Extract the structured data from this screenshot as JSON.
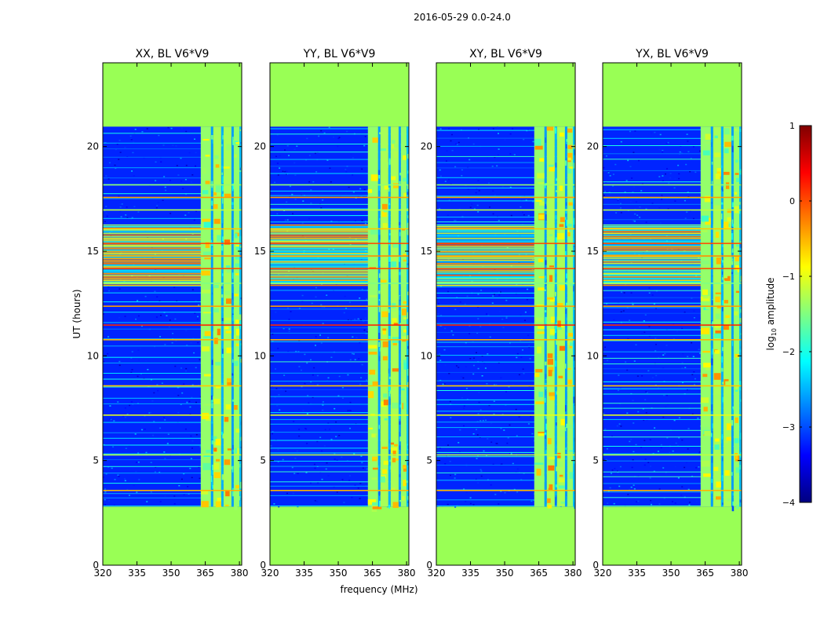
{
  "figure_title": "2016-05-29 0.0-24.0",
  "chart_data": {
    "type": "heatmap",
    "title": "2016-05-29 0.0-24.0",
    "panels": [
      {
        "id": "xx",
        "title": "XX, BL V6*V9"
      },
      {
        "id": "yy",
        "title": "YY, BL V6*V9"
      },
      {
        "id": "xy",
        "title": "XY, BL V6*V9"
      },
      {
        "id": "yx",
        "title": "YX, BL V6*V9"
      }
    ],
    "xlabel": "frequency (MHz)",
    "ylabel": "UT (hours)",
    "xlim": [
      320,
      381
    ],
    "ylim": [
      0,
      24
    ],
    "xticks": [
      320,
      335,
      350,
      365,
      380
    ],
    "yticks": [
      0,
      5,
      10,
      15,
      20
    ],
    "xtick_labels": [
      "320",
      "335",
      "350",
      "365",
      "380"
    ],
    "ytick_labels": [
      "0",
      "5",
      "10",
      "15",
      "20"
    ],
    "observed_ut_range": [
      2.8,
      20.95
    ],
    "masked_color": "#99ff55",
    "colorbar": {
      "label": "log10 amplitude",
      "min": -4,
      "max": 1,
      "ticks": [
        -4,
        -3,
        -2,
        -1,
        0,
        1
      ],
      "tick_labels": [
        "−4",
        "−3",
        "−2",
        "−1",
        "0",
        "1"
      ],
      "colormap": "jet"
    },
    "features": {
      "background_level": -3.2,
      "bright_band_mhz": [
        363,
        381
      ],
      "bright_band_columns_mhz": [
        [
          363,
          367.5,
          -1.4
        ],
        [
          367.5,
          368.5,
          -2.6
        ],
        [
          368.5,
          372,
          -1.3
        ],
        [
          372,
          373,
          -2.5
        ],
        [
          373,
          376.5,
          -1.3
        ],
        [
          376.5,
          377.5,
          -2.6
        ],
        [
          377.5,
          380,
          -1.4
        ],
        [
          380,
          381,
          -2.4
        ]
      ],
      "flagged_rows_ut": [
        [
          3.6,
          -0.5
        ],
        [
          5.3,
          -1.2
        ],
        [
          7.2,
          -1.0
        ],
        [
          8.6,
          -0.6
        ],
        [
          10.8,
          -0.5
        ],
        [
          11.5,
          0.2
        ],
        [
          12.4,
          -0.4
        ],
        [
          13.5,
          -1.5
        ],
        [
          14.2,
          0.0
        ],
        [
          14.8,
          -0.3
        ],
        [
          15.4,
          0.0
        ],
        [
          16.1,
          -0.6
        ],
        [
          17.0,
          -1.2
        ],
        [
          17.6,
          -0.4
        ],
        [
          18.2,
          -1.4
        ]
      ],
      "noisy_block_ut": [
        13.4,
        16.3
      ]
    }
  }
}
